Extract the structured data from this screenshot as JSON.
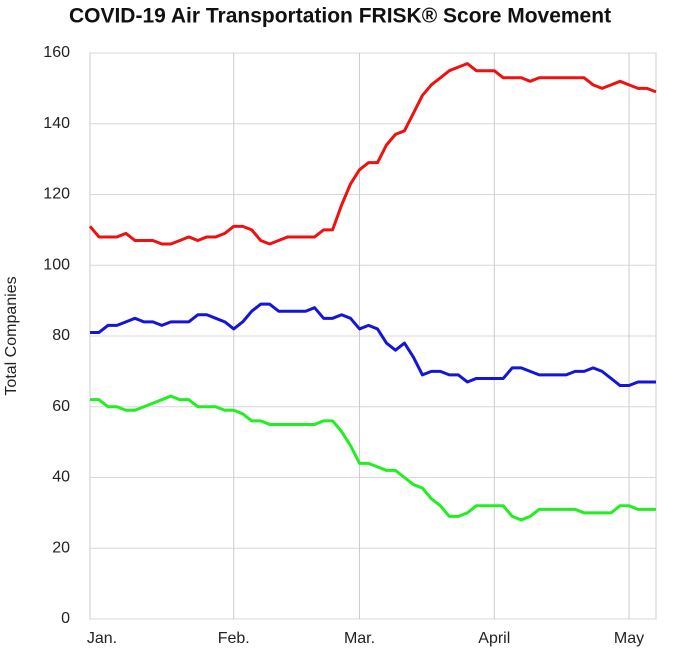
{
  "chart_data": {
    "type": "line",
    "title": "COVID-19 Air Transportation FRISK® Score Movement",
    "y_label": "Total Companies",
    "categories": [
      "Jan.",
      null,
      null,
      null,
      null,
      null,
      null,
      null,
      null,
      null,
      null,
      null,
      null,
      null,
      null,
      null,
      "Feb.",
      null,
      null,
      null,
      null,
      null,
      null,
      null,
      null,
      null,
      null,
      null,
      null,
      null,
      "Mar.",
      null,
      null,
      null,
      null,
      null,
      null,
      null,
      null,
      null,
      null,
      null,
      null,
      null,
      null,
      "April",
      null,
      null,
      null,
      null,
      null,
      null,
      null,
      null,
      null,
      null,
      null,
      null,
      null,
      null,
      "May",
      null,
      null,
      null
    ],
    "series": [
      {
        "name": "Red",
        "color": "#ee1111",
        "values": [
          111,
          108,
          108,
          108,
          109,
          107,
          107,
          107,
          106,
          106,
          107,
          108,
          107,
          108,
          108,
          109,
          111,
          111,
          110,
          107,
          106,
          107,
          108,
          108,
          108,
          108,
          110,
          110,
          117,
          123,
          127,
          129,
          129,
          134,
          137,
          138,
          143,
          148,
          151,
          153,
          155,
          156,
          157,
          155,
          155,
          155,
          153,
          153,
          153,
          152,
          153,
          153,
          153,
          153,
          153,
          153,
          151,
          150,
          151,
          152,
          151,
          150,
          150,
          149
        ]
      },
      {
        "name": "Blue",
        "color": "#1515d8",
        "values": [
          81,
          81,
          83,
          83,
          84,
          85,
          84,
          84,
          83,
          84,
          84,
          84,
          86,
          86,
          85,
          84,
          82,
          84,
          87,
          89,
          89,
          87,
          87,
          87,
          87,
          88,
          85,
          85,
          86,
          85,
          82,
          83,
          82,
          78,
          76,
          78,
          74,
          69,
          70,
          70,
          69,
          69,
          67,
          68,
          68,
          68,
          68,
          71,
          71,
          70,
          69,
          69,
          69,
          69,
          70,
          70,
          71,
          70,
          68,
          66,
          66,
          67,
          67,
          67
        ]
      },
      {
        "name": "Green",
        "color": "#22ee22",
        "values": [
          62,
          62,
          60,
          60,
          59,
          59,
          60,
          61,
          62,
          63,
          62,
          62,
          60,
          60,
          60,
          59,
          59,
          58,
          56,
          56,
          55,
          55,
          55,
          55,
          55,
          55,
          56,
          56,
          53,
          49,
          44,
          44,
          43,
          42,
          42,
          40,
          38,
          37,
          34,
          32,
          29,
          29,
          30,
          32,
          32,
          32,
          32,
          29,
          28,
          29,
          31,
          31,
          31,
          31,
          31,
          30,
          30,
          30,
          30,
          32,
          32,
          31,
          31,
          31
        ]
      }
    ],
    "ylim": [
      0,
      160
    ],
    "yticks": [
      0,
      20,
      40,
      60,
      80,
      100,
      120,
      140,
      160
    ],
    "grid": true
  }
}
